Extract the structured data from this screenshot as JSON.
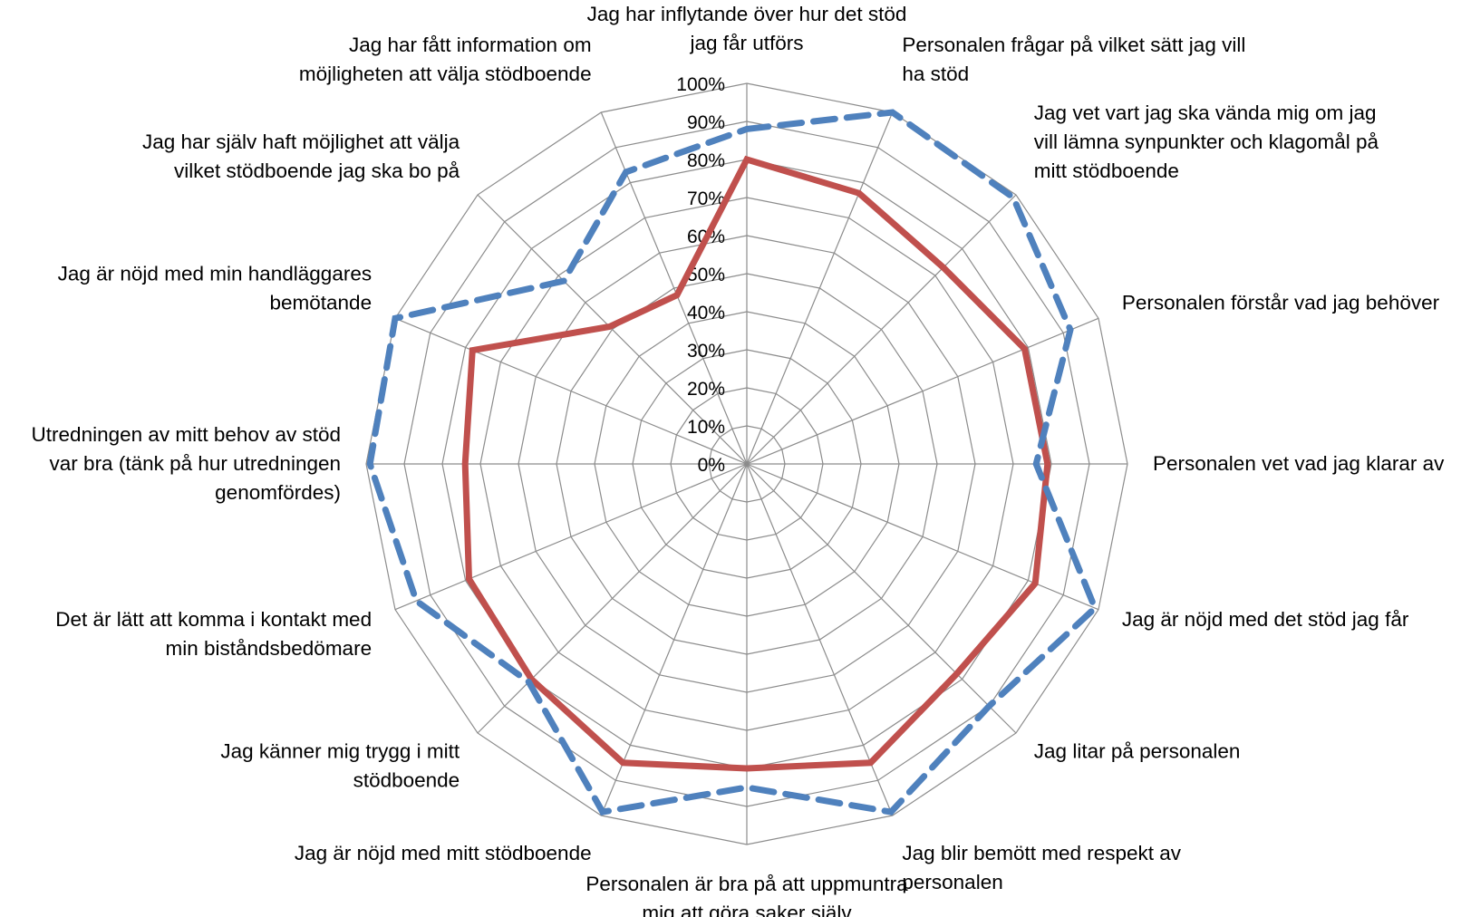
{
  "chart_data": {
    "type": "radar",
    "title": "",
    "ylim": [
      0,
      100
    ],
    "tick_values": [
      0,
      10,
      20,
      30,
      40,
      50,
      60,
      70,
      80,
      90,
      100
    ],
    "tick_labels": [
      "0%",
      "10%",
      "20%",
      "30%",
      "40%",
      "50%",
      "60%",
      "70%",
      "80%",
      "90%",
      "100%"
    ],
    "grid": true,
    "legend": "none",
    "categories": [
      "Jag har inflytande över hur det stöd jag får utförs",
      "Personalen frågar på vilket sätt jag vill ha stöd",
      "Jag vet vart jag ska vända mig om jag vill lämna synpunkter och klagomål på mitt stödboende",
      "Personalen förstår vad jag behöver",
      "Personalen vet vad jag klarar av",
      "Jag är nöjd med det stöd jag får",
      "Jag litar på personalen",
      "Jag blir bemött med respekt av personalen",
      "Personalen är bra på att uppmuntra mig att göra saker själv",
      "Jag är nöjd med mitt stödboende",
      "Jag känner mig trygg i mitt stödboende",
      "Det är lätt att komma i kontakt med min biståndsbedömare",
      "Utredningen av mitt behov av stöd var bra (tänk på hur utredningen genomfördes)",
      "Jag är nöjd med min handläggares bemötande",
      "Jag har själv haft möjlighet att välja vilket stödboende jag ska bo på",
      "Jag har fått information om möjligheten att välja stödboende"
    ],
    "category_lines": [
      [
        "Jag har inflytande över hur det stöd",
        "jag får utförs"
      ],
      [
        "Personalen frågar på vilket sätt jag vill",
        "ha stöd"
      ],
      [
        "Jag vet vart jag ska vända mig om jag",
        "vill lämna synpunkter och klagomål på",
        "mitt stödboende"
      ],
      [
        "Personalen förstår vad jag behöver"
      ],
      [
        "Personalen vet vad jag klarar av"
      ],
      [
        "Jag är nöjd med det stöd jag får"
      ],
      [
        "Jag litar på personalen"
      ],
      [
        "Jag blir bemött med respekt av",
        "personalen"
      ],
      [
        "Personalen är bra på att uppmuntra",
        "mig att göra saker själv"
      ],
      [
        "Jag är nöjd med mitt stödboende"
      ],
      [
        "Jag känner mig trygg i mitt",
        "stödboende"
      ],
      [
        "Det är lätt att komma i kontakt med",
        "min biståndsbedömare"
      ],
      [
        "Utredningen av mitt behov av stöd",
        "var bra (tänk på hur utredningen",
        "genomfördes)"
      ],
      [
        "Jag är nöjd med min handläggares",
        "bemötande"
      ],
      [
        "Jag har själv haft möjlighet att välja",
        "vilket stödboende jag ska bo på"
      ],
      [
        "Jag har fått information om",
        "möjligheten att välja stödboende"
      ]
    ],
    "series": [
      {
        "color": "#C0504D",
        "line_style": "solid",
        "values": [
          80,
          77,
          73,
          79,
          79,
          82,
          78,
          85,
          80,
          85,
          80,
          79,
          74,
          78,
          51,
          48
        ]
      },
      {
        "color": "#4F81BD",
        "line_style": "dashed",
        "values": [
          88,
          100,
          99,
          92,
          76,
          99,
          90,
          99,
          85,
          99,
          81,
          94,
          99,
          100,
          68,
          83
        ]
      }
    ]
  }
}
